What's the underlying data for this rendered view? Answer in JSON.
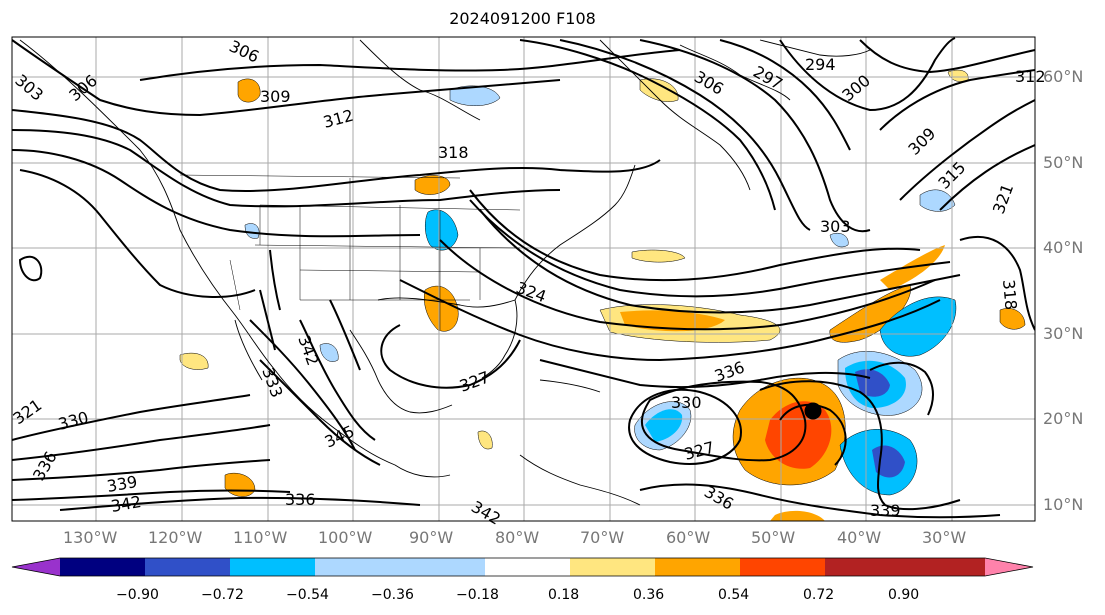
{
  "title": "2024091200 F108",
  "lat_labels": [
    "60°N",
    "50°N",
    "40°N",
    "30°N",
    "20°N",
    "10°N"
  ],
  "lon_labels": [
    "130°W",
    "120°W",
    "110°W",
    "100°W",
    "90°W",
    "80°W",
    "70°W",
    "60°W",
    "50°W",
    "40°W",
    "30°W"
  ],
  "colorbar": {
    "ticks": [
      "−0.90",
      "−0.72",
      "−0.54",
      "−0.36",
      "−0.18",
      "0.18",
      "0.36",
      "0.54",
      "0.72",
      "0.90"
    ],
    "colors": [
      "#9932cc",
      "#000080",
      "#3050c8",
      "#00bfff",
      "#add8ff",
      "#ffffff",
      "#ffe680",
      "#ffa500",
      "#ff4500",
      "#b22222",
      "#ff82ab"
    ]
  },
  "contour_labels": [
    "306",
    "306",
    "303",
    "309",
    "312",
    "318",
    "306",
    "297",
    "294",
    "300",
    "309",
    "315",
    "321",
    "303",
    "318",
    "312",
    "324",
    "327",
    "336",
    "330",
    "327",
    "336",
    "339",
    "321",
    "330",
    "339",
    "342",
    "336",
    "345",
    "333",
    "342",
    "342",
    "336"
  ],
  "marker": "storm-center-dot"
}
